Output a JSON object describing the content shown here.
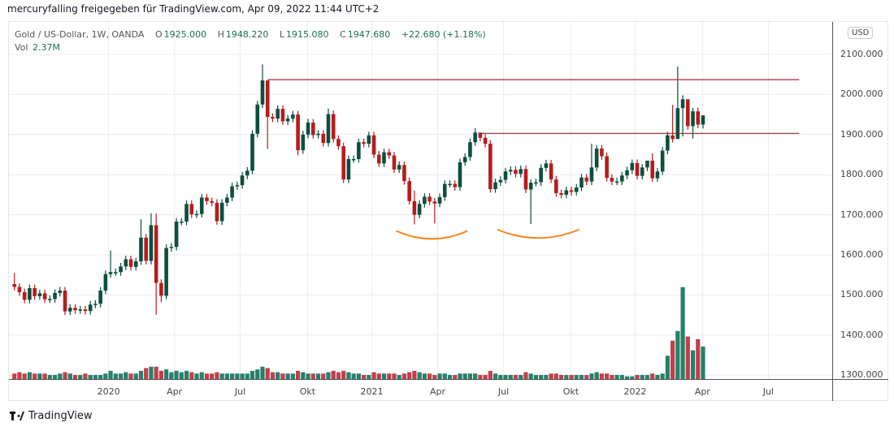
{
  "header": {
    "share_text": "mercuryfalling freigegeben für TradingView.com, Apr 09, 2022 11:44 UTC+2"
  },
  "legend": {
    "symbol": "Gold  / US-Dollar, 1W, OANDA",
    "open_label": "O",
    "open": "1925.000",
    "high_label": "H",
    "high": "1948.220",
    "low_label": "L",
    "low": "1915.080",
    "close_label": "C",
    "close": "1947.680",
    "change": "+22.680 (+1.18%)",
    "vol_label": "Vol",
    "vol": "2.37M"
  },
  "currency_button": "USD",
  "brand": "TradingView",
  "colors": {
    "up": "#0b4f3f",
    "down": "#b71c1c",
    "vol_up": "#26806a",
    "vol_down": "#c0404c",
    "arc": "#f5841f",
    "level": "#b3232f",
    "level2": "#8c2a33"
  },
  "chart_data": {
    "type": "candlestick",
    "title": "Gold / US-Dollar, 1W, OANDA",
    "ylim": [
      1280,
      2150
    ],
    "y_ticks": [
      "2100.000",
      "2000.000",
      "1900.000",
      "1800.000",
      "1700.000",
      "1600.000",
      "1500.000",
      "1400.000",
      "1300.000"
    ],
    "y_tick_values": [
      2100,
      2000,
      1900,
      1800,
      1700,
      1600,
      1500,
      1400,
      1300
    ],
    "x_ticks": [
      "2020",
      "Apr",
      "Jul",
      "Okt",
      "2021",
      "Apr",
      "Jul",
      "Okt",
      "2022",
      "Apr",
      "Jul"
    ],
    "x_tick_week_index": [
      18.6,
      31.6,
      44.6,
      57.9,
      70.6,
      83.6,
      96.6,
      109.9,
      122.6,
      135.9,
      148.9
    ],
    "first_open": 1527,
    "close": [
      1520,
      1507,
      1488,
      1517,
      1497,
      1504,
      1489,
      1490,
      1505,
      1511,
      1459,
      1468,
      1462,
      1464,
      1460,
      1476,
      1478,
      1511,
      1552,
      1557,
      1557,
      1571,
      1589,
      1570,
      1584,
      1643,
      1585,
      1674,
      1530,
      1498,
      1617,
      1620,
      1683,
      1683,
      1727,
      1701,
      1702,
      1743,
      1734,
      1730,
      1684,
      1730,
      1743,
      1771,
      1774,
      1798,
      1810,
      1902,
      1975,
      2035,
      1944,
      1940,
      1964,
      1933,
      1940,
      1950,
      1861,
      1900,
      1930,
      1899,
      1902,
      1879,
      1951,
      1889,
      1871,
      1788,
      1839,
      1839,
      1881,
      1877,
      1898,
      1850,
      1828,
      1856,
      1848,
      1813,
      1824,
      1784,
      1734,
      1700,
      1727,
      1745,
      1733,
      1728,
      1744,
      1777,
      1777,
      1769,
      1831,
      1844,
      1881,
      1905,
      1892,
      1877,
      1764,
      1781,
      1787,
      1808,
      1812,
      1802,
      1814,
      1763,
      1780,
      1781,
      1817,
      1828,
      1788,
      1754,
      1750,
      1761,
      1757,
      1768,
      1793,
      1783,
      1818,
      1865,
      1846,
      1792,
      1783,
      1783,
      1798,
      1811,
      1829,
      1797,
      1818,
      1835,
      1791,
      1808,
      1860,
      1898,
      1889,
      1966,
      1988,
      1921,
      1958,
      1925,
      1947.68
    ],
    "default_wick": 9,
    "high_extremes": {
      "0": 1555,
      "19": 1611,
      "25": 1689,
      "27": 1704,
      "28": 1703,
      "49": 2075,
      "50": 2015,
      "62": 1965,
      "79": 1760,
      "91": 1916,
      "92": 1903,
      "114": 1877,
      "125": 1830,
      "126": 1853,
      "130": 1974,
      "131": 2070,
      "132": 1998,
      "133": 1966,
      "136": 1948.22
    },
    "low_extremes": {
      "28": 1451,
      "29": 1482,
      "50": 1864,
      "56": 1848,
      "79": 1676,
      "83": 1678,
      "102": 1677,
      "131": 1895,
      "132": 1895,
      "134": 1890,
      "136": 1915.08
    },
    "volume_m": [
      0.4,
      0.5,
      0.4,
      0.5,
      0.4,
      0.4,
      0.4,
      0.3,
      0.3,
      0.4,
      0.5,
      0.4,
      0.3,
      0.3,
      0.4,
      0.3,
      0.3,
      0.3,
      0.4,
      0.6,
      0.4,
      0.4,
      0.5,
      0.4,
      0.4,
      0.6,
      0.8,
      0.9,
      0.9,
      0.6,
      0.7,
      0.5,
      0.6,
      0.5,
      0.6,
      0.5,
      0.4,
      0.5,
      0.4,
      0.4,
      0.5,
      0.4,
      0.4,
      0.4,
      0.4,
      0.4,
      0.4,
      0.6,
      0.7,
      0.9,
      0.8,
      0.5,
      0.5,
      0.4,
      0.4,
      0.4,
      0.6,
      0.5,
      0.4,
      0.4,
      0.4,
      0.4,
      0.5,
      0.6,
      0.5,
      0.6,
      0.5,
      0.4,
      0.4,
      0.3,
      0.3,
      0.5,
      0.4,
      0.4,
      0.4,
      0.4,
      0.3,
      0.4,
      0.5,
      0.6,
      0.5,
      0.4,
      0.4,
      0.3,
      0.4,
      0.4,
      0.3,
      0.3,
      0.4,
      0.4,
      0.4,
      0.4,
      0.3,
      0.3,
      0.6,
      0.4,
      0.3,
      0.3,
      0.3,
      0.3,
      0.3,
      0.5,
      0.4,
      0.3,
      0.3,
      0.3,
      0.4,
      0.4,
      0.3,
      0.3,
      0.3,
      0.3,
      0.3,
      0.3,
      0.4,
      0.5,
      0.4,
      0.4,
      0.3,
      0.3,
      0.3,
      0.2,
      0.2,
      0.3,
      0.3,
      0.3,
      0.4,
      0.3,
      0.4,
      1.7,
      2.8,
      3.5,
      6.7,
      3.1,
      2.1,
      2.9,
      2.37
    ],
    "levels": [
      {
        "price": 2037,
        "from_index": 50,
        "to_index": 155
      },
      {
        "price": 1903,
        "from_index": 92,
        "to_index": 155
      }
    ],
    "arcs": [
      {
        "from_index": 75.4,
        "to_index": 89.5,
        "price": 1660,
        "bottom_price": 1640
      },
      {
        "from_index": 95.4,
        "to_index": 111.5,
        "price": 1663,
        "bottom_price": 1642
      }
    ]
  }
}
